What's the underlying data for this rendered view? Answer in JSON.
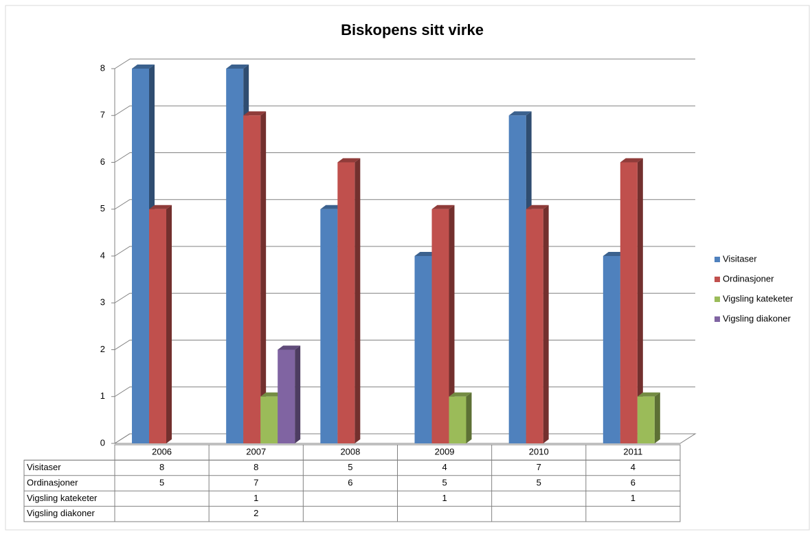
{
  "chart_data": {
    "type": "bar",
    "title": "Biskopens sitt virke",
    "categories": [
      "2006",
      "2007",
      "2008",
      "2009",
      "2010",
      "2011"
    ],
    "series": [
      {
        "name": "Visitaser",
        "color": "#4f81bd",
        "values": [
          8,
          8,
          5,
          4,
          7,
          4
        ]
      },
      {
        "name": "Ordinasjoner",
        "color": "#c0504d",
        "values": [
          5,
          7,
          6,
          5,
          5,
          6
        ]
      },
      {
        "name": "Vigsling kateketer",
        "color": "#9bbb59",
        "values": [
          null,
          1,
          null,
          1,
          null,
          1
        ]
      },
      {
        "name": "Vigsling diakoner",
        "color": "#8064a2",
        "values": [
          null,
          2,
          null,
          null,
          null,
          null
        ]
      }
    ],
    "ylim": [
      0,
      8
    ],
    "yticks": [
      0,
      1,
      2,
      3,
      4,
      5,
      6,
      7,
      8
    ],
    "grid": true,
    "legend": "right",
    "data_table": true
  }
}
